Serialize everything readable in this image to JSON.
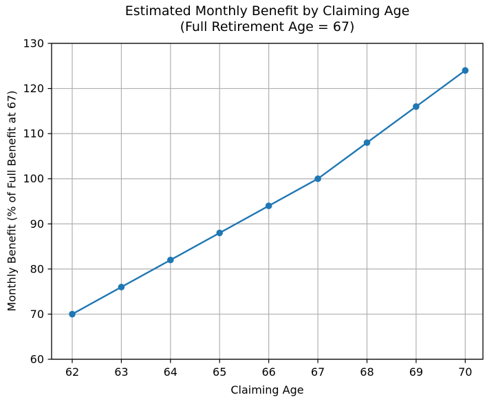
{
  "chart_data": {
    "type": "line",
    "title": "Estimated Monthly Benefit by Claiming Age",
    "subtitle": "(Full Retirement Age = 67)",
    "xlabel": "Claiming Age",
    "ylabel": "Monthly Benefit (% of Full Benefit at 67)",
    "x": [
      62,
      63,
      64,
      65,
      66,
      67,
      68,
      69,
      70
    ],
    "y": [
      70,
      76,
      82,
      88,
      94,
      100,
      108,
      116,
      124
    ],
    "xticks": [
      62,
      63,
      64,
      65,
      66,
      67,
      68,
      69,
      70
    ],
    "yticks": [
      60,
      70,
      80,
      90,
      100,
      110,
      120,
      130
    ],
    "xlim": [
      61.58,
      70.36
    ],
    "ylim": [
      60,
      130
    ],
    "grid": true,
    "legend": false,
    "marker": "circle",
    "line_color": "#1f77b4",
    "grid_color": "#b0b0b0",
    "spine_color": "#000000"
  }
}
